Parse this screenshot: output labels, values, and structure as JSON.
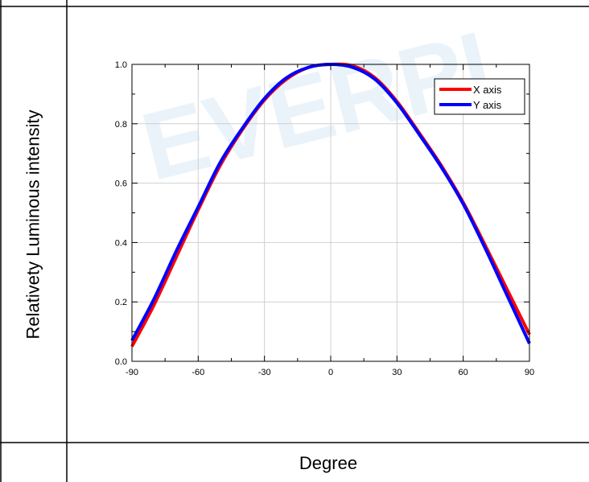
{
  "watermark": "EVERPL",
  "chart_data": {
    "type": "line",
    "xlabel": "Degree",
    "ylabel": "Relativety Luminous intensity",
    "xlim": [
      -90,
      90
    ],
    "ylim": [
      0,
      1.0
    ],
    "xticks": [
      -90,
      -60,
      -30,
      0,
      30,
      60,
      90
    ],
    "yticks": [
      0.0,
      0.2,
      0.4,
      0.6,
      0.8,
      1.0
    ],
    "ytick_labels": [
      "0.0",
      "0.2",
      "0.4",
      "0.6",
      "0.8",
      "1.0"
    ],
    "grid": true,
    "legend": "top-right",
    "x": [
      -90,
      -80,
      -70,
      -60,
      -50,
      -40,
      -30,
      -20,
      -10,
      0,
      10,
      20,
      30,
      40,
      50,
      60,
      70,
      80,
      90
    ],
    "series": [
      {
        "name": "X axis",
        "color": "#ff0000",
        "values": [
          0.05,
          0.19,
          0.35,
          0.51,
          0.66,
          0.78,
          0.88,
          0.95,
          0.99,
          1.0,
          0.995,
          0.955,
          0.875,
          0.77,
          0.66,
          0.535,
          0.39,
          0.24,
          0.09
        ]
      },
      {
        "name": "Y axis",
        "color": "#0000ff",
        "values": [
          0.07,
          0.21,
          0.37,
          0.52,
          0.67,
          0.785,
          0.885,
          0.955,
          0.99,
          1.0,
          0.99,
          0.95,
          0.87,
          0.765,
          0.655,
          0.53,
          0.38,
          0.22,
          0.06
        ]
      }
    ]
  }
}
